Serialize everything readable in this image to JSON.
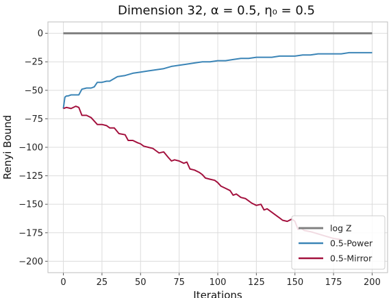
{
  "chart_data": {
    "type": "line",
    "title": "Dimension 32, α = 0.5, η₀ = 0.5",
    "xlabel": "Iterations",
    "ylabel": "Renyi Bound",
    "xlim": [
      -10,
      210
    ],
    "ylim": [
      -210,
      10
    ],
    "xticks": [
      0,
      25,
      50,
      75,
      100,
      125,
      150,
      175,
      200
    ],
    "yticks": [
      0,
      -25,
      -50,
      -75,
      -100,
      -125,
      -150,
      -175,
      -200
    ],
    "grid": true,
    "legend_position": "bottom-right",
    "series": [
      {
        "name": "log Z",
        "color": "#808080",
        "x": [
          0,
          200
        ],
        "y": [
          0,
          0
        ]
      },
      {
        "name": "0.5-Power",
        "color": "#3a84b6",
        "x": [
          0,
          1,
          2,
          3,
          5,
          8,
          10,
          12,
          15,
          18,
          20,
          22,
          25,
          28,
          30,
          35,
          40,
          45,
          50,
          55,
          60,
          65,
          70,
          75,
          80,
          85,
          90,
          95,
          100,
          105,
          110,
          115,
          120,
          125,
          130,
          135,
          140,
          145,
          150,
          155,
          160,
          165,
          170,
          175,
          180,
          185,
          190,
          195,
          200
        ],
        "y": [
          -66,
          -56,
          -55,
          -55,
          -54,
          -54,
          -54,
          -49,
          -48,
          -48,
          -47,
          -43,
          -43,
          -42,
          -42,
          -38,
          -37,
          -35,
          -34,
          -33,
          -32,
          -31,
          -29,
          -28,
          -27,
          -26,
          -25,
          -25,
          -24,
          -24,
          -23,
          -22,
          -22,
          -21,
          -21,
          -21,
          -20,
          -20,
          -20,
          -19,
          -19,
          -18,
          -18,
          -18,
          -18,
          -17,
          -17,
          -17,
          -17
        ]
      },
      {
        "name": "0.5-Mirror",
        "color": "#a3103d",
        "x": [
          0,
          2,
          5,
          8,
          10,
          12,
          15,
          18,
          20,
          22,
          25,
          28,
          30,
          33,
          36,
          40,
          42,
          45,
          48,
          50,
          52,
          55,
          58,
          60,
          62,
          65,
          68,
          70,
          72,
          75,
          78,
          80,
          82,
          85,
          88,
          90,
          92,
          95,
          98,
          100,
          102,
          105,
          108,
          110,
          112,
          115,
          118,
          120,
          122,
          125,
          128,
          130,
          132,
          135,
          138,
          140,
          142,
          145,
          148,
          150,
          152,
          154,
          156,
          160,
          165,
          170,
          175,
          180
        ],
        "y": [
          -66,
          -65,
          -66,
          -64,
          -65,
          -72,
          -72,
          -74,
          -77,
          -80,
          -80,
          -81,
          -83,
          -83,
          -88,
          -89,
          -94,
          -94,
          -96,
          -97,
          -99,
          -100,
          -101,
          -103,
          -105,
          -104,
          -109,
          -112,
          -111,
          -112,
          -114,
          -113,
          -119,
          -120,
          -122,
          -124,
          -127,
          -128,
          -129,
          -131,
          -134,
          -136,
          -138,
          -142,
          -141,
          -144,
          -145,
          -147,
          -149,
          -151,
          -150,
          -155,
          -154,
          -157,
          -160,
          -162,
          -164,
          -165,
          -163,
          -165,
          -172,
          -171,
          -173,
          -174,
          -176,
          -178,
          -180,
          -181
        ]
      }
    ]
  }
}
